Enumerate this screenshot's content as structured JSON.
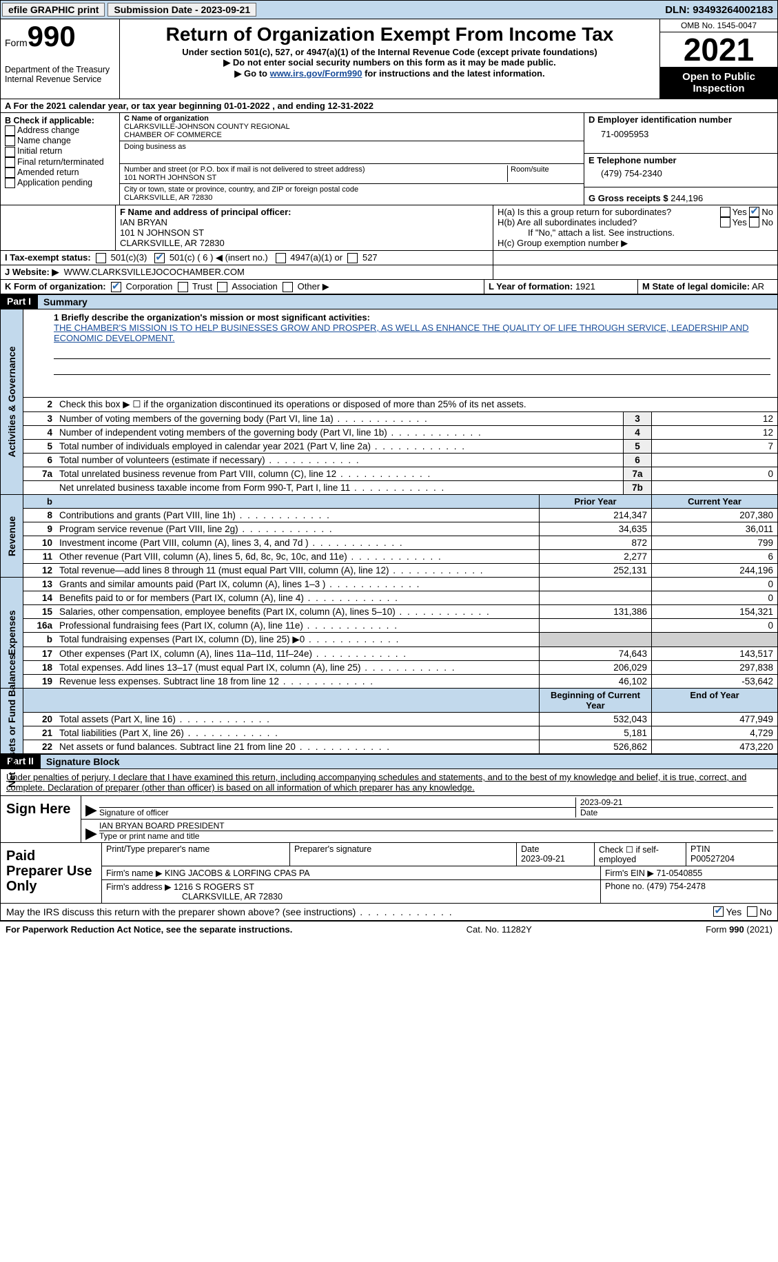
{
  "topbar": {
    "efile": "efile GRAPHIC print",
    "sub_label": "Submission Date - 2023-09-21",
    "dln_label": "DLN: 93493264002183"
  },
  "header": {
    "form_word": "Form",
    "form_num": "990",
    "dept1": "Department of the Treasury",
    "dept2": "Internal Revenue Service",
    "title": "Return of Organization Exempt From Income Tax",
    "subtitle": "Under section 501(c), 527, or 4947(a)(1) of the Internal Revenue Code (except private foundations)",
    "instr1": "▶ Do not enter social security numbers on this form as it may be made public.",
    "instr2_pre": "▶ Go to ",
    "instr2_link": "www.irs.gov/Form990",
    "instr2_post": " for instructions and the latest information.",
    "omb": "OMB No. 1545-0047",
    "year": "2021",
    "open": "Open to Public Inspection"
  },
  "cal_year": {
    "pre": "A For the 2021 calendar year, or tax year beginning ",
    "begin": "01-01-2022",
    "mid": "  , and ending ",
    "end": "12-31-2022"
  },
  "section_b": {
    "header": "B Check if applicable:",
    "items": [
      "Address change",
      "Name change",
      "Initial return",
      "Final return/terminated",
      "Amended return",
      "Application pending"
    ]
  },
  "section_c": {
    "label": "C Name of organization",
    "name1": "CLARKSVILLE-JOHNSON COUNTY REGIONAL",
    "name2": "CHAMBER OF COMMERCE",
    "dba_label": "Doing business as",
    "addr_label": "Number and street (or P.O. box if mail is not delivered to street address)",
    "room_label": "Room/suite",
    "addr": "101 NORTH JOHNSON ST",
    "city_label": "City or town, state or province, country, and ZIP or foreign postal code",
    "city": "CLARKSVILLE, AR  72830"
  },
  "section_d": {
    "label": "D Employer identification number",
    "ein": "71-0095953"
  },
  "section_e": {
    "label": "E Telephone number",
    "phone": "(479) 754-2340"
  },
  "section_g": {
    "label": "G Gross receipts $",
    "amount": "244,196"
  },
  "section_f": {
    "label": "F Name and address of principal officer:",
    "name": "IAN BRYAN",
    "addr1": "101 N JOHNSON ST",
    "addr2": "CLARKSVILLE, AR  72830"
  },
  "section_h": {
    "a": "H(a)  Is this a group return for subordinates?",
    "b": "H(b)  Are all subordinates included?",
    "b_note": "If \"No,\" attach a list. See instructions.",
    "c": "H(c)  Group exemption number ▶",
    "yes": "Yes",
    "no": "No"
  },
  "section_i": {
    "label": "I  Tax-exempt status:",
    "o1": "501(c)(3)",
    "o2": "501(c) ( 6 ) ◀ (insert no.)",
    "o3": "4947(a)(1) or",
    "o4": "527"
  },
  "section_j": {
    "label": "J  Website: ▶",
    "val": "WWW.CLARKSVILLEJOCOCHAMBER.COM"
  },
  "section_k": {
    "label": "K Form of organization:",
    "o1": "Corporation",
    "o2": "Trust",
    "o3": "Association",
    "o4": "Other ▶"
  },
  "section_l": {
    "label": "L Year of formation:",
    "val": "1921"
  },
  "section_m": {
    "label": "M State of legal domicile:",
    "val": "AR"
  },
  "part1": {
    "num": "Part I",
    "title": "Summary",
    "line1_label": "1  Briefly describe the organization's mission or most significant activities:",
    "mission": "THE CHAMBER'S MISSION IS TO HELP BUSINESSES GROW AND PROSPER, AS WELL AS ENHANCE THE QUALITY OF LIFE THROUGH SERVICE, LEADERSHIP AND ECONOMIC DEVELOPMENT.",
    "line2": "Check this box ▶ ☐ if the organization discontinued its operations or disposed of more than 25% of its net assets.",
    "lines_gov": [
      {
        "n": "3",
        "t": "Number of voting members of the governing body (Part VI, line 1a)",
        "box": "3",
        "v": "12"
      },
      {
        "n": "4",
        "t": "Number of independent voting members of the governing body (Part VI, line 1b)",
        "box": "4",
        "v": "12"
      },
      {
        "n": "5",
        "t": "Total number of individuals employed in calendar year 2021 (Part V, line 2a)",
        "box": "5",
        "v": "7"
      },
      {
        "n": "6",
        "t": "Total number of volunteers (estimate if necessary)",
        "box": "6",
        "v": ""
      },
      {
        "n": "7a",
        "t": "Total unrelated business revenue from Part VIII, column (C), line 12",
        "box": "7a",
        "v": "0"
      },
      {
        "n": "",
        "t": "Net unrelated business taxable income from Form 990-T, Part I, line 11",
        "box": "7b",
        "v": ""
      }
    ],
    "col_prior": "Prior Year",
    "col_current": "Current Year",
    "lines_rev": [
      {
        "n": "8",
        "t": "Contributions and grants (Part VIII, line 1h)",
        "p": "214,347",
        "c": "207,380"
      },
      {
        "n": "9",
        "t": "Program service revenue (Part VIII, line 2g)",
        "p": "34,635",
        "c": "36,011"
      },
      {
        "n": "10",
        "t": "Investment income (Part VIII, column (A), lines 3, 4, and 7d )",
        "p": "872",
        "c": "799"
      },
      {
        "n": "11",
        "t": "Other revenue (Part VIII, column (A), lines 5, 6d, 8c, 9c, 10c, and 11e)",
        "p": "2,277",
        "c": "6"
      },
      {
        "n": "12",
        "t": "Total revenue—add lines 8 through 11 (must equal Part VIII, column (A), line 12)",
        "p": "252,131",
        "c": "244,196"
      }
    ],
    "lines_exp": [
      {
        "n": "13",
        "t": "Grants and similar amounts paid (Part IX, column (A), lines 1–3 )",
        "p": "",
        "c": "0"
      },
      {
        "n": "14",
        "t": "Benefits paid to or for members (Part IX, column (A), line 4)",
        "p": "",
        "c": "0"
      },
      {
        "n": "15",
        "t": "Salaries, other compensation, employee benefits (Part IX, column (A), lines 5–10)",
        "p": "131,386",
        "c": "154,321"
      },
      {
        "n": "16a",
        "t": "Professional fundraising fees (Part IX, column (A), line 11e)",
        "p": "",
        "c": "0"
      },
      {
        "n": "b",
        "t": "Total fundraising expenses (Part IX, column (D), line 25) ▶0",
        "p": "grey",
        "c": "grey"
      },
      {
        "n": "17",
        "t": "Other expenses (Part IX, column (A), lines 11a–11d, 11f–24e)",
        "p": "74,643",
        "c": "143,517"
      },
      {
        "n": "18",
        "t": "Total expenses. Add lines 13–17 (must equal Part IX, column (A), line 25)",
        "p": "206,029",
        "c": "297,838"
      },
      {
        "n": "19",
        "t": "Revenue less expenses. Subtract line 18 from line 12",
        "p": "46,102",
        "c": "-53,642"
      }
    ],
    "col_begin": "Beginning of Current Year",
    "col_end": "End of Year",
    "lines_net": [
      {
        "n": "20",
        "t": "Total assets (Part X, line 16)",
        "p": "532,043",
        "c": "477,949"
      },
      {
        "n": "21",
        "t": "Total liabilities (Part X, line 26)",
        "p": "5,181",
        "c": "4,729"
      },
      {
        "n": "22",
        "t": "Net assets or fund balances. Subtract line 21 from line 20",
        "p": "526,862",
        "c": "473,220"
      }
    ],
    "vlabels": {
      "gov": "Activities & Governance",
      "rev": "Revenue",
      "exp": "Expenses",
      "net": "Net Assets or Fund Balances"
    }
  },
  "part2": {
    "num": "Part II",
    "title": "Signature Block",
    "decl": "Under penalties of perjury, I declare that I have examined this return, including accompanying schedules and statements, and to the best of my knowledge and belief, it is true, correct, and complete. Declaration of preparer (other than officer) is based on all information of which preparer has any knowledge.",
    "sign_here": "Sign Here",
    "sig_officer": "Signature of officer",
    "sig_date": "2023-09-21",
    "date_label": "Date",
    "officer_name": "IAN BRYAN  BOARD PRESIDENT",
    "officer_label": "Type or print name and title"
  },
  "preparer": {
    "title": "Paid Preparer Use Only",
    "h1": "Print/Type preparer's name",
    "h2": "Preparer's signature",
    "h3_label": "Date",
    "h3": "2023-09-21",
    "h4_label": "Check ☐ if self-employed",
    "h5_label": "PTIN",
    "h5": "P00527204",
    "firm_label": "Firm's name    ▶",
    "firm": "KING JACOBS & LORFING CPAS PA",
    "ein_label": "Firm's EIN ▶",
    "ein": "71-0540855",
    "addr_label": "Firm's address ▶",
    "addr1": "1216 S ROGERS ST",
    "addr2": "CLARKSVILLE, AR  72830",
    "phone_label": "Phone no.",
    "phone": "(479) 754-2478"
  },
  "discuss": {
    "text": "May the IRS discuss this return with the preparer shown above? (see instructions)",
    "yes": "Yes",
    "no": "No"
  },
  "footer": {
    "left": "For Paperwork Reduction Act Notice, see the separate instructions.",
    "mid": "Cat. No. 11282Y",
    "right": "Form 990 (2021)"
  }
}
